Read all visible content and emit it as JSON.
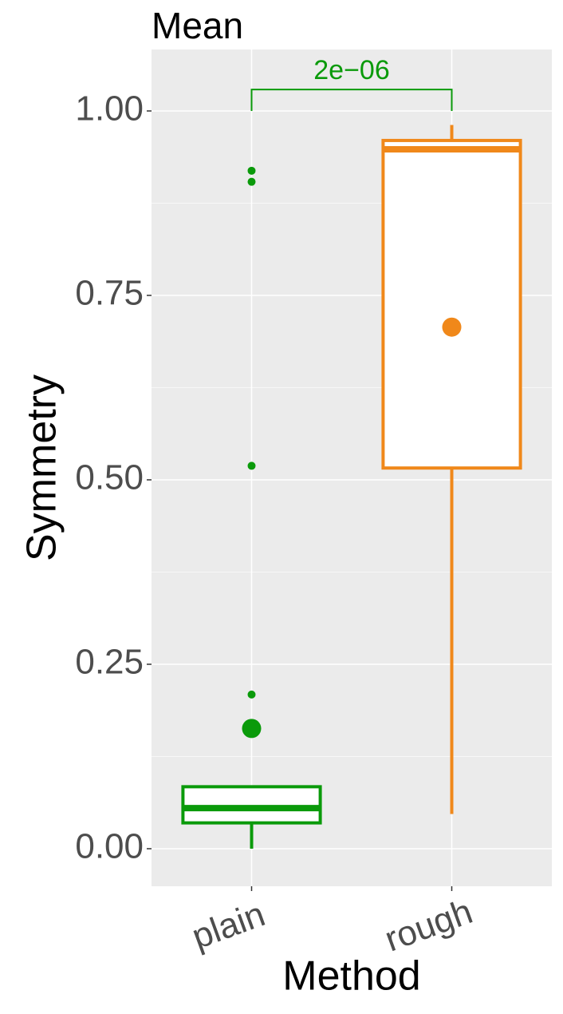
{
  "chart_data": {
    "type": "box",
    "title": "Mean",
    "x_label": "Method",
    "y_label": "Symmetry",
    "ylim": [
      -0.0509,
      1.0833
    ],
    "yticks": [
      {
        "value": 0,
        "label": "0.00"
      },
      {
        "value": 0.25,
        "label": "0.25"
      },
      {
        "value": 0.5,
        "label": "0.50"
      },
      {
        "value": 0.75,
        "label": "0.75"
      },
      {
        "value": 1,
        "label": "1.00"
      }
    ],
    "minor_yticks": [
      0.125,
      0.375,
      0.625,
      0.875
    ],
    "grid": true,
    "boxes": [
      {
        "category": "plain",
        "color": "#0a9a0a",
        "whisker_low": 0.0,
        "q1": 0.035,
        "median": 0.055,
        "q3": 0.084,
        "whisker_high": 0.085,
        "mean": 0.163,
        "outliers": [
          0.209,
          0.519,
          0.904,
          0.919
        ]
      },
      {
        "category": "rough",
        "color": "#f0881a",
        "whisker_low": 0.047,
        "q1": 0.516,
        "median": 0.948,
        "q3": 0.96,
        "whisker_high": 0.981,
        "mean": 0.707,
        "outliers": []
      }
    ],
    "annotation": {
      "text": "2e−06",
      "y": 1.029,
      "bracket_end": 1.0,
      "color": "#0a9a0a"
    }
  }
}
